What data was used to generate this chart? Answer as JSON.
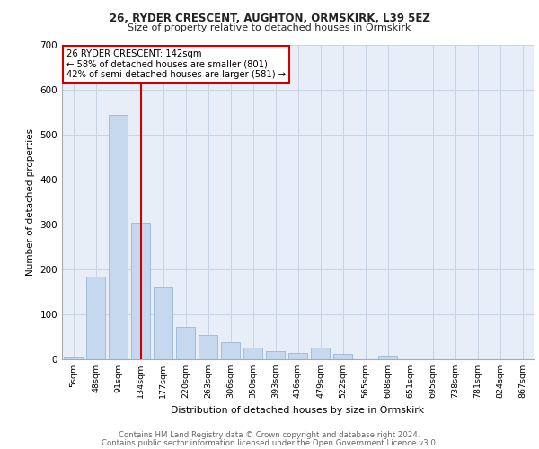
{
  "title1": "26, RYDER CRESCENT, AUGHTON, ORMSKIRK, L39 5EZ",
  "title2": "Size of property relative to detached houses in Ormskirk",
  "xlabel": "Distribution of detached houses by size in Ormskirk",
  "ylabel": "Number of detached properties",
  "categories": [
    "5sqm",
    "48sqm",
    "91sqm",
    "134sqm",
    "177sqm",
    "220sqm",
    "263sqm",
    "306sqm",
    "350sqm",
    "393sqm",
    "436sqm",
    "479sqm",
    "522sqm",
    "565sqm",
    "608sqm",
    "651sqm",
    "695sqm",
    "738sqm",
    "781sqm",
    "824sqm",
    "867sqm"
  ],
  "values": [
    5,
    185,
    545,
    305,
    160,
    73,
    55,
    38,
    27,
    18,
    15,
    26,
    12,
    0,
    8,
    0,
    0,
    0,
    0,
    0,
    0
  ],
  "bar_color": "#c5d8ee",
  "bar_edge_color": "#8ab0d0",
  "vline_x": 3.0,
  "vline_color": "#cc0000",
  "annotation_lines": [
    "26 RYDER CRESCENT: 142sqm",
    "← 58% of detached houses are smaller (801)",
    "42% of semi-detached houses are larger (581) →"
  ],
  "annotation_box_color": "#cc0000",
  "grid_color": "#c8d4e4",
  "background_color": "#e8eef8",
  "ylim": [
    0,
    700
  ],
  "yticks": [
    0,
    100,
    200,
    300,
    400,
    500,
    600,
    700
  ],
  "footnote1": "Contains HM Land Registry data © Crown copyright and database right 2024.",
  "footnote2": "Contains public sector information licensed under the Open Government Licence v3.0."
}
